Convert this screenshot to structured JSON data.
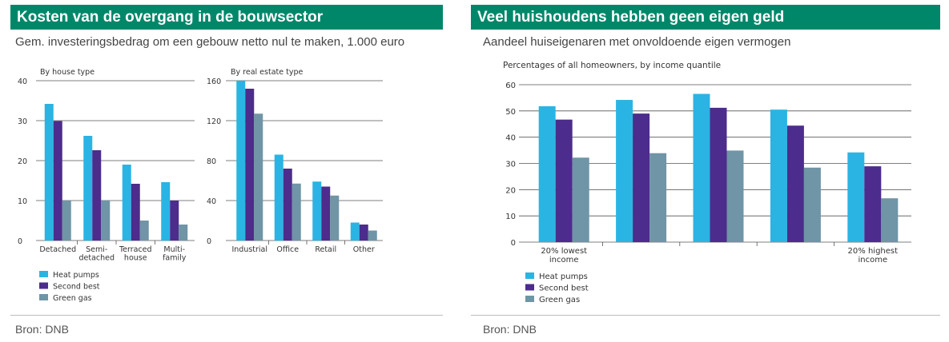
{
  "colors": {
    "heat_pumps": "#2ab4e3",
    "second_best": "#4c2c8c",
    "green_gas": "#6f95a6",
    "header": "#00876a"
  },
  "left": {
    "title": "Kosten van de overgang in de bouwsector",
    "subtitle": "Gem. investeringsbedrag om een gebouw netto nul te maken, 1.000 euro",
    "source": "Bron: DNB"
  },
  "right": {
    "title": "Veel huishoudens hebben geen eigen geld",
    "subtitle": "Aandeel huiseigenaren met onvoldoende eigen vermogen",
    "source": "Bron: DNB"
  },
  "legend": [
    "Heat pumps",
    "Second best",
    "Green gas"
  ],
  "chart_data": [
    {
      "type": "bar",
      "title": "By house type",
      "categories": [
        "Detached",
        "Semi-\ndetached",
        "Terraced\nhouse",
        "Multi-\nfamily"
      ],
      "series": [
        {
          "name": "Heat pumps",
          "values": [
            34.2,
            26.2,
            19.0,
            14.6
          ]
        },
        {
          "name": "Second best",
          "values": [
            29.9,
            22.6,
            14.2,
            10.0
          ]
        },
        {
          "name": "Green gas",
          "values": [
            10.0,
            10.0,
            5.0,
            4.0
          ]
        }
      ],
      "ylim": [
        0,
        40
      ],
      "yticks": [
        0,
        10,
        20,
        30,
        40
      ],
      "grid": true
    },
    {
      "type": "bar",
      "title": "By real estate type",
      "categories": [
        "Industrial",
        "Office",
        "Retail",
        "Other"
      ],
      "series": [
        {
          "name": "Heat pumps",
          "values": [
            160,
            86,
            59,
            18
          ]
        },
        {
          "name": "Second best",
          "values": [
            152,
            72,
            54,
            16
          ]
        },
        {
          "name": "Green gas",
          "values": [
            127,
            57,
            45,
            10
          ]
        }
      ],
      "ylim": [
        0,
        160
      ],
      "yticks": [
        0,
        40,
        80,
        120,
        160
      ],
      "grid": true
    },
    {
      "type": "bar",
      "title": "Percentages of all homeowners, by income quantile",
      "categories": [
        "20% lowest\nincome",
        "",
        "",
        "",
        "20% highest\nincome"
      ],
      "series": [
        {
          "name": "Heat pumps",
          "values": [
            51.8,
            54.2,
            56.5,
            50.5,
            34.2
          ]
        },
        {
          "name": "Second best",
          "values": [
            46.7,
            49.0,
            51.2,
            44.4,
            28.9
          ]
        },
        {
          "name": "Green gas",
          "values": [
            32.2,
            33.9,
            34.9,
            28.4,
            16.7
          ]
        }
      ],
      "ylim": [
        0,
        60
      ],
      "yticks": [
        0,
        10,
        20,
        30,
        40,
        50,
        60
      ],
      "grid": true
    }
  ]
}
